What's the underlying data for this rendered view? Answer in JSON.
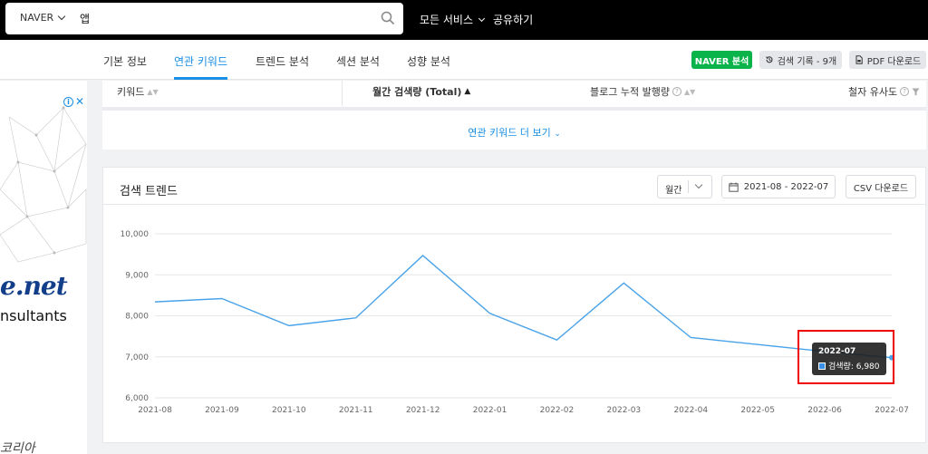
{
  "topbar": {
    "engine": "NAVER",
    "query": "앱",
    "links": [
      "모든 서비스",
      "공유하기"
    ]
  },
  "nav": {
    "tabs": [
      "기본 정보",
      "연관 키워드",
      "트렌드 분석",
      "섹션 분석",
      "성향 분석"
    ],
    "active_tab": 1,
    "naver_button": "NAVER 분석",
    "history_button": "검색 기록 - 9개",
    "pdf_button": "PDF 다운로드"
  },
  "ad": {
    "brand_text": "e.net",
    "sub_text": "nsultants",
    "bottom_text": "코리아"
  },
  "keyword_table": {
    "columns": [
      "키워드",
      "월간 검색량 (Total)",
      "블로그 누적 발행량",
      "철자 유사도"
    ],
    "more_link": "연관 키워드 더 보기"
  },
  "trend": {
    "title": "검색 트렌드",
    "period_select": "월간",
    "date_range": "2021-08 - 2022-07",
    "csv_button": "CSV 다운로드",
    "tooltip": {
      "title": "2022-07",
      "label": "검색량: 6,980"
    }
  },
  "colors": {
    "accent": "#1a8fe3",
    "naver_green": "#0bb44a",
    "line": "#4aa3e8",
    "highlight": "#ee0000"
  },
  "chart_data": {
    "type": "line",
    "x": [
      "2021-08",
      "2021-09",
      "2021-10",
      "2021-11",
      "2021-12",
      "2022-01",
      "2022-02",
      "2022-03",
      "2022-04",
      "2022-05",
      "2022-06",
      "2022-07"
    ],
    "series": [
      {
        "values": [
          8340,
          8420,
          7760,
          7950,
          9470,
          8060,
          7410,
          8800,
          7470,
          7300,
          7130,
          6980
        ]
      }
    ],
    "yticks": [
      "6,000",
      "7,000",
      "8,000",
      "9,000",
      "10,000"
    ],
    "ylim": [
      6000,
      10000
    ],
    "grid": true
  }
}
